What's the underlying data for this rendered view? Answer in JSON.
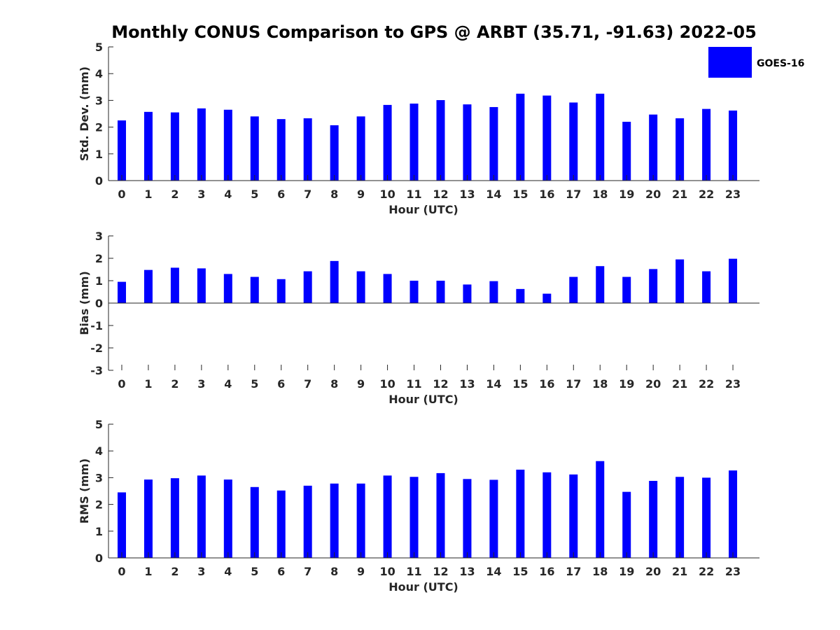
{
  "figure": {
    "title": "Monthly CONUS Comparison to GPS @ ARBT (35.71, -91.63) 2022-05"
  },
  "legend": {
    "label": "GOES-16",
    "placement": "top-right"
  },
  "colors": {
    "bar": "#0000ff",
    "axis": "#262626"
  },
  "chart_data": [
    {
      "type": "bar",
      "xlabel": "Hour (UTC)",
      "ylabel": "Std. Dev. (mm)",
      "ylim": [
        0,
        5
      ],
      "yticks": [
        "0",
        "1",
        "2",
        "3",
        "4",
        "5"
      ],
      "categories": [
        "0",
        "1",
        "2",
        "3",
        "4",
        "5",
        "6",
        "7",
        "8",
        "9",
        "10",
        "11",
        "12",
        "13",
        "14",
        "15",
        "16",
        "17",
        "18",
        "19",
        "20",
        "21",
        "22",
        "23"
      ],
      "series": [
        {
          "name": "GOES-16",
          "values": [
            2.25,
            2.57,
            2.55,
            2.7,
            2.65,
            2.4,
            2.3,
            2.33,
            2.07,
            2.4,
            2.83,
            2.88,
            3.01,
            2.85,
            2.75,
            3.25,
            3.18,
            2.92,
            3.25,
            2.2,
            2.47,
            2.33,
            2.68,
            2.62
          ]
        }
      ]
    },
    {
      "type": "bar",
      "xlabel": "Hour (UTC)",
      "ylabel": "Bias (mm)",
      "ylim": [
        -3,
        3
      ],
      "yticks": [
        "-3",
        "-2",
        "-1",
        "0",
        "1",
        "2",
        "3"
      ],
      "categories": [
        "0",
        "1",
        "2",
        "3",
        "4",
        "5",
        "6",
        "7",
        "8",
        "9",
        "10",
        "11",
        "12",
        "13",
        "14",
        "15",
        "16",
        "17",
        "18",
        "19",
        "20",
        "21",
        "22",
        "23"
      ],
      "series": [
        {
          "name": "GOES-16",
          "values": [
            0.95,
            1.48,
            1.58,
            1.55,
            1.3,
            1.17,
            1.07,
            1.42,
            1.88,
            1.42,
            1.3,
            1.0,
            1.0,
            0.83,
            0.98,
            0.63,
            0.42,
            1.17,
            1.65,
            1.17,
            1.52,
            1.95,
            1.42,
            1.98
          ]
        }
      ]
    },
    {
      "type": "bar",
      "xlabel": "Hour (UTC)",
      "ylabel": "RMS (mm)",
      "ylim": [
        0,
        5
      ],
      "yticks": [
        "0",
        "1",
        "2",
        "3",
        "4",
        "5"
      ],
      "categories": [
        "0",
        "1",
        "2",
        "3",
        "4",
        "5",
        "6",
        "7",
        "8",
        "9",
        "10",
        "11",
        "12",
        "13",
        "14",
        "15",
        "16",
        "17",
        "18",
        "19",
        "20",
        "21",
        "22",
        "23"
      ],
      "series": [
        {
          "name": "GOES-16",
          "values": [
            2.45,
            2.93,
            2.98,
            3.08,
            2.93,
            2.65,
            2.52,
            2.7,
            2.78,
            2.78,
            3.08,
            3.03,
            3.17,
            2.95,
            2.92,
            3.3,
            3.2,
            3.12,
            3.62,
            2.47,
            2.88,
            3.03,
            3.0,
            3.27
          ]
        }
      ]
    }
  ]
}
